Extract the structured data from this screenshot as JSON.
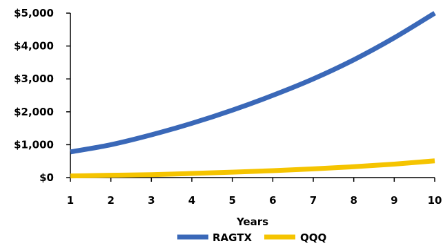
{
  "chart_data": {
    "type": "line",
    "title": "",
    "xlabel": "Years",
    "ylabel": "",
    "x": [
      1,
      2,
      3,
      4,
      5,
      6,
      7,
      8,
      9,
      10
    ],
    "xlim": [
      1,
      10
    ],
    "ylim": [
      0,
      5000
    ],
    "x_ticks": [
      "1",
      "2",
      "3",
      "4",
      "5",
      "6",
      "7",
      "8",
      "9",
      "10"
    ],
    "y_ticks": [
      "$0",
      "$1,000",
      "$2,000",
      "$3,000",
      "$4,000",
      "$5,000"
    ],
    "y_tick_values": [
      0,
      1000,
      2000,
      3000,
      4000,
      5000
    ],
    "grid": false,
    "legend_position": "bottom",
    "series": [
      {
        "name": "RAGTX",
        "color": "#3a68b8",
        "values": [
          780,
          1000,
          1300,
          1650,
          2050,
          2500,
          3000,
          3580,
          4250,
          5000
        ]
      },
      {
        "name": "QQQ",
        "color": "#f5c400",
        "values": [
          50,
          70,
          90,
          125,
          165,
          210,
          265,
          330,
          410,
          510
        ]
      }
    ]
  }
}
